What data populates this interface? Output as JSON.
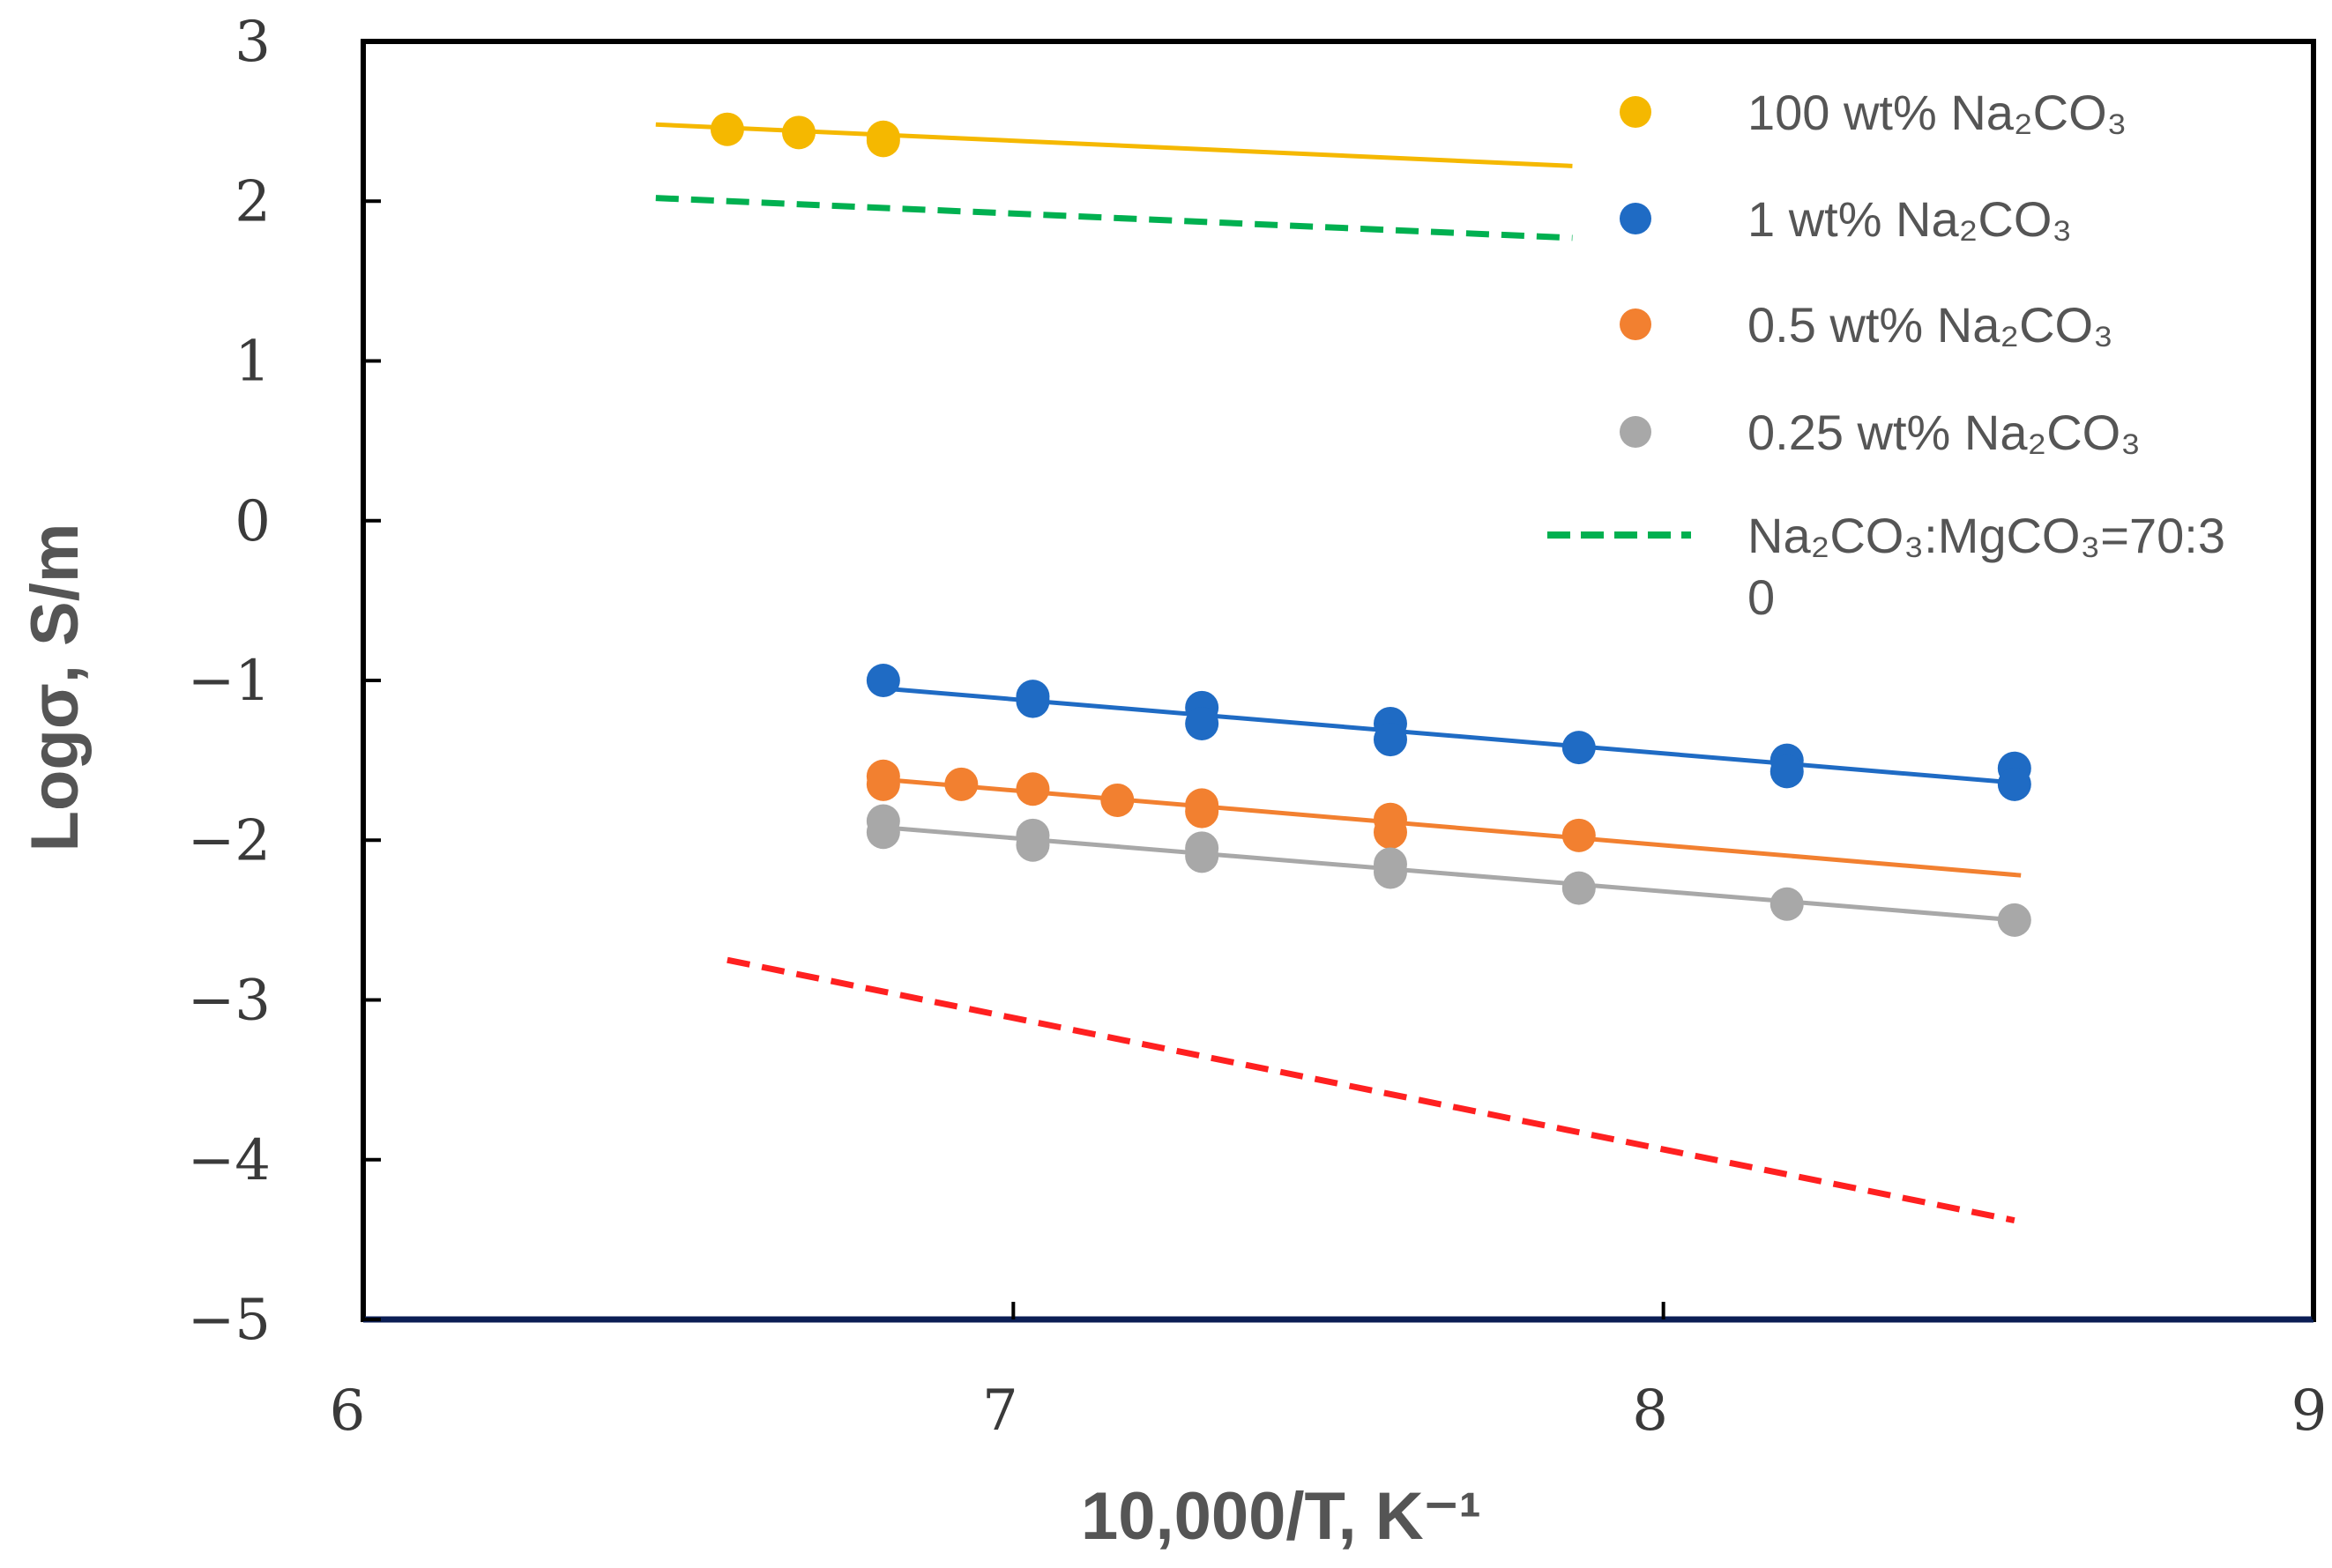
{
  "chart_data": {
    "type": "scatter",
    "title": "",
    "xlabel": "10,000/T, K⁻¹",
    "ylabel": "Logσ, S/m",
    "xlim": [
      6,
      9
    ],
    "ylim": [
      -5,
      3
    ],
    "x_ticks": [
      "6",
      "7",
      "8",
      "9"
    ],
    "y_ticks": [
      "3",
      "2",
      "1",
      "0",
      "−1",
      "−2",
      "−3",
      "−4",
      "−5"
    ],
    "legend_position": "top-right",
    "series": [
      {
        "name": "100 wt% Na₂CO₃",
        "color": "#F5B800",
        "marker": "circle",
        "points": [
          [
            6.56,
            2.45
          ],
          [
            6.67,
            2.43
          ],
          [
            6.8,
            2.4
          ],
          [
            6.8,
            2.38
          ]
        ],
        "trend": [
          [
            6.45,
            2.48
          ],
          [
            7.86,
            2.22
          ]
        ]
      },
      {
        "name": "1 wt% Na₂CO₃",
        "color": "#1F6BC4",
        "marker": "circle",
        "points": [
          [
            6.8,
            -1.0
          ],
          [
            7.03,
            -1.1
          ],
          [
            7.03,
            -1.13
          ],
          [
            7.29,
            -1.17
          ],
          [
            7.29,
            -1.27
          ],
          [
            7.58,
            -1.27
          ],
          [
            7.58,
            -1.37
          ],
          [
            7.87,
            -1.42
          ],
          [
            8.19,
            -1.5
          ],
          [
            8.19,
            -1.57
          ],
          [
            8.54,
            -1.55
          ],
          [
            8.54,
            -1.65
          ]
        ],
        "trend": [
          [
            6.8,
            -1.05
          ],
          [
            8.54,
            -1.64
          ]
        ]
      },
      {
        "name": "0.5 wt% Na₂CO₃",
        "color": "#F28030",
        "marker": "circle",
        "points": [
          [
            6.8,
            -1.6
          ],
          [
            6.8,
            -1.65
          ],
          [
            6.92,
            -1.65
          ],
          [
            7.03,
            -1.68
          ],
          [
            7.16,
            -1.75
          ],
          [
            7.29,
            -1.78
          ],
          [
            7.29,
            -1.82
          ],
          [
            7.58,
            -1.87
          ],
          [
            7.58,
            -1.95
          ],
          [
            7.87,
            -1.97
          ]
        ],
        "trend": [
          [
            6.8,
            -1.62
          ],
          [
            8.55,
            -2.22
          ]
        ]
      },
      {
        "name": "0.25 wt% Na₂CO₃",
        "color": "#A8A8A8",
        "marker": "circle",
        "points": [
          [
            6.8,
            -1.88
          ],
          [
            6.8,
            -1.95
          ],
          [
            7.03,
            -1.97
          ],
          [
            7.03,
            -2.03
          ],
          [
            7.29,
            -2.05
          ],
          [
            7.29,
            -2.1
          ],
          [
            7.58,
            -2.15
          ],
          [
            7.58,
            -2.2
          ],
          [
            7.87,
            -2.3
          ],
          [
            8.19,
            -2.4
          ],
          [
            8.54,
            -2.5
          ]
        ],
        "trend": [
          [
            6.8,
            -1.92
          ],
          [
            8.54,
            -2.5
          ]
        ]
      },
      {
        "name": "Na₂CO₃:MgCO₃=70:3",
        "name_cont": "0",
        "color": "#00B050",
        "style": "dashed",
        "trend": [
          [
            6.45,
            2.02
          ],
          [
            7.86,
            1.77
          ]
        ]
      },
      {
        "name": "",
        "color": "#FF2020",
        "style": "dashed",
        "show_in_legend": false,
        "trend": [
          [
            6.56,
            -2.75
          ],
          [
            8.54,
            -4.38
          ]
        ]
      }
    ]
  }
}
